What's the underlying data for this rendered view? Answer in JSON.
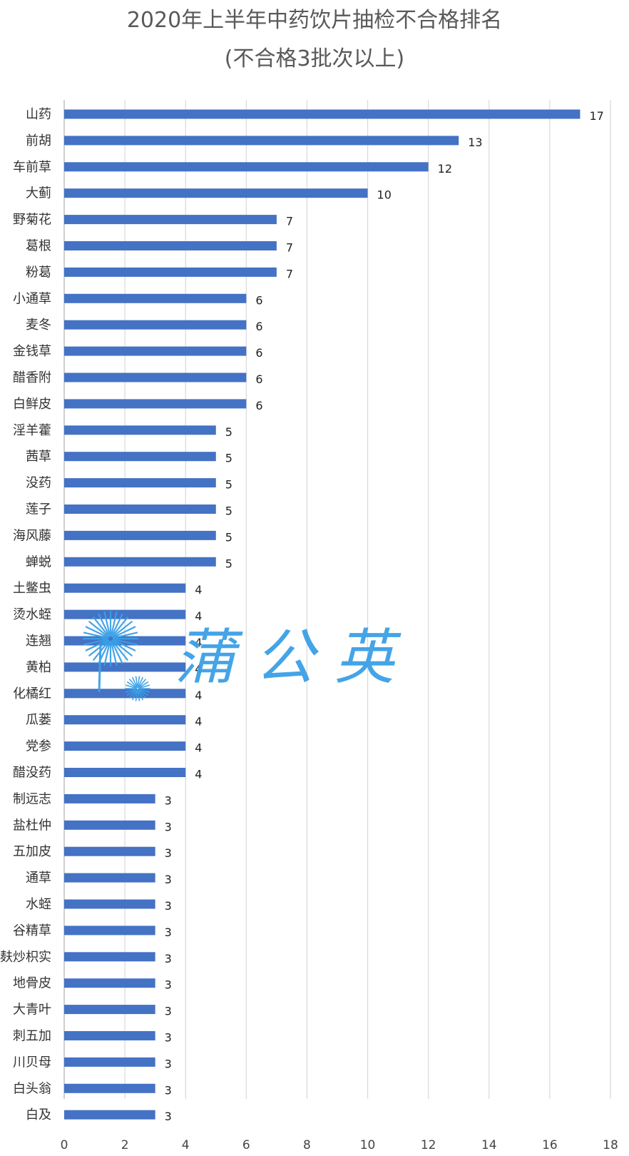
{
  "chart_data": {
    "type": "bar",
    "orientation": "horizontal",
    "title": "2020年上半年中药饮片抽检不合格排名",
    "subtitle": "(不合格3批次以上)",
    "xlabel": "",
    "ylabel": "",
    "xlim": [
      0,
      18
    ],
    "x_ticks": [
      "0",
      "2",
      "4",
      "6",
      "8",
      "10",
      "12",
      "14",
      "16",
      "18"
    ],
    "grid": true,
    "legend": "none",
    "bar_color": "#4472c4",
    "categories": [
      "山药",
      "前胡",
      "车前草",
      "大蓟",
      "野菊花",
      "葛根",
      "粉葛",
      "小通草",
      "麦冬",
      "金钱草",
      "醋香附",
      "白鲜皮",
      "淫羊藿",
      "茜草",
      "没药",
      "莲子",
      "海风藤",
      "蝉蜕",
      "土鳖虫",
      "烫水蛭",
      "连翘",
      "黄柏",
      "化橘红",
      "瓜蒌",
      "党参",
      "醋没药",
      "制远志",
      "盐杜仲",
      "五加皮",
      "通草",
      "水蛭",
      "谷精草",
      "麸炒枳实",
      "地骨皮",
      "大青叶",
      "刺五加",
      "川贝母",
      "白头翁",
      "白及"
    ],
    "values": [
      17,
      13,
      12,
      10,
      7,
      7,
      7,
      6,
      6,
      6,
      6,
      6,
      5,
      5,
      5,
      5,
      5,
      5,
      4,
      4,
      4,
      4,
      4,
      4,
      4,
      4,
      3,
      3,
      3,
      3,
      3,
      3,
      3,
      3,
      3,
      3,
      3,
      3,
      3
    ],
    "value_labels": [
      "17",
      "13",
      "12",
      "10",
      "7",
      "7",
      "7",
      "6",
      "6",
      "6",
      "6",
      "6",
      "5",
      "5",
      "5",
      "5",
      "5",
      "5",
      "4",
      "4",
      "4",
      "4",
      "4",
      "4",
      "4",
      "4",
      "3",
      "3",
      "3",
      "3",
      "3",
      "3",
      "3",
      "3",
      "3",
      "3",
      "3",
      "3",
      "3"
    ]
  },
  "watermark": {
    "text": "蒲公英",
    "color": "#3aa0e6",
    "icon": "dandelion-icon"
  }
}
